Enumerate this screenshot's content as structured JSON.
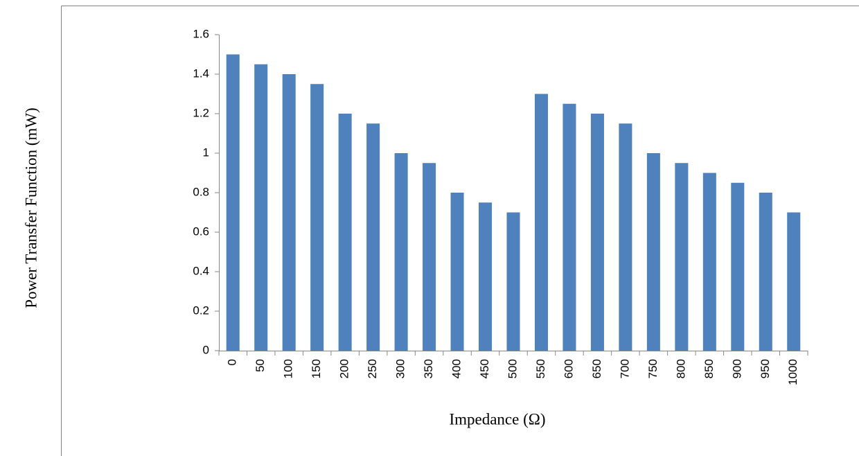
{
  "chart_data": {
    "type": "bar",
    "x_label": "Impedance (Ω)",
    "y_label": "Power Transfer Function (mW)",
    "categories": [
      "0",
      "50",
      "100",
      "150",
      "200",
      "250",
      "300",
      "350",
      "400",
      "450",
      "500",
      "550",
      "600",
      "650",
      "700",
      "750",
      "800",
      "850",
      "900",
      "950",
      "1000"
    ],
    "values": [
      1.5,
      1.45,
      1.4,
      1.35,
      1.2,
      1.15,
      1.0,
      0.95,
      0.8,
      0.75,
      0.7,
      1.3,
      1.25,
      1.2,
      1.15,
      1.0,
      0.95,
      0.9,
      0.85,
      0.8,
      0.7
    ],
    "color": "#4f81bd",
    "ylim": [
      0,
      1.6
    ],
    "yticks": [
      0,
      0.2,
      0.4,
      0.6,
      0.8,
      1,
      1.2,
      1.4,
      1.6
    ],
    "grid": false
  }
}
